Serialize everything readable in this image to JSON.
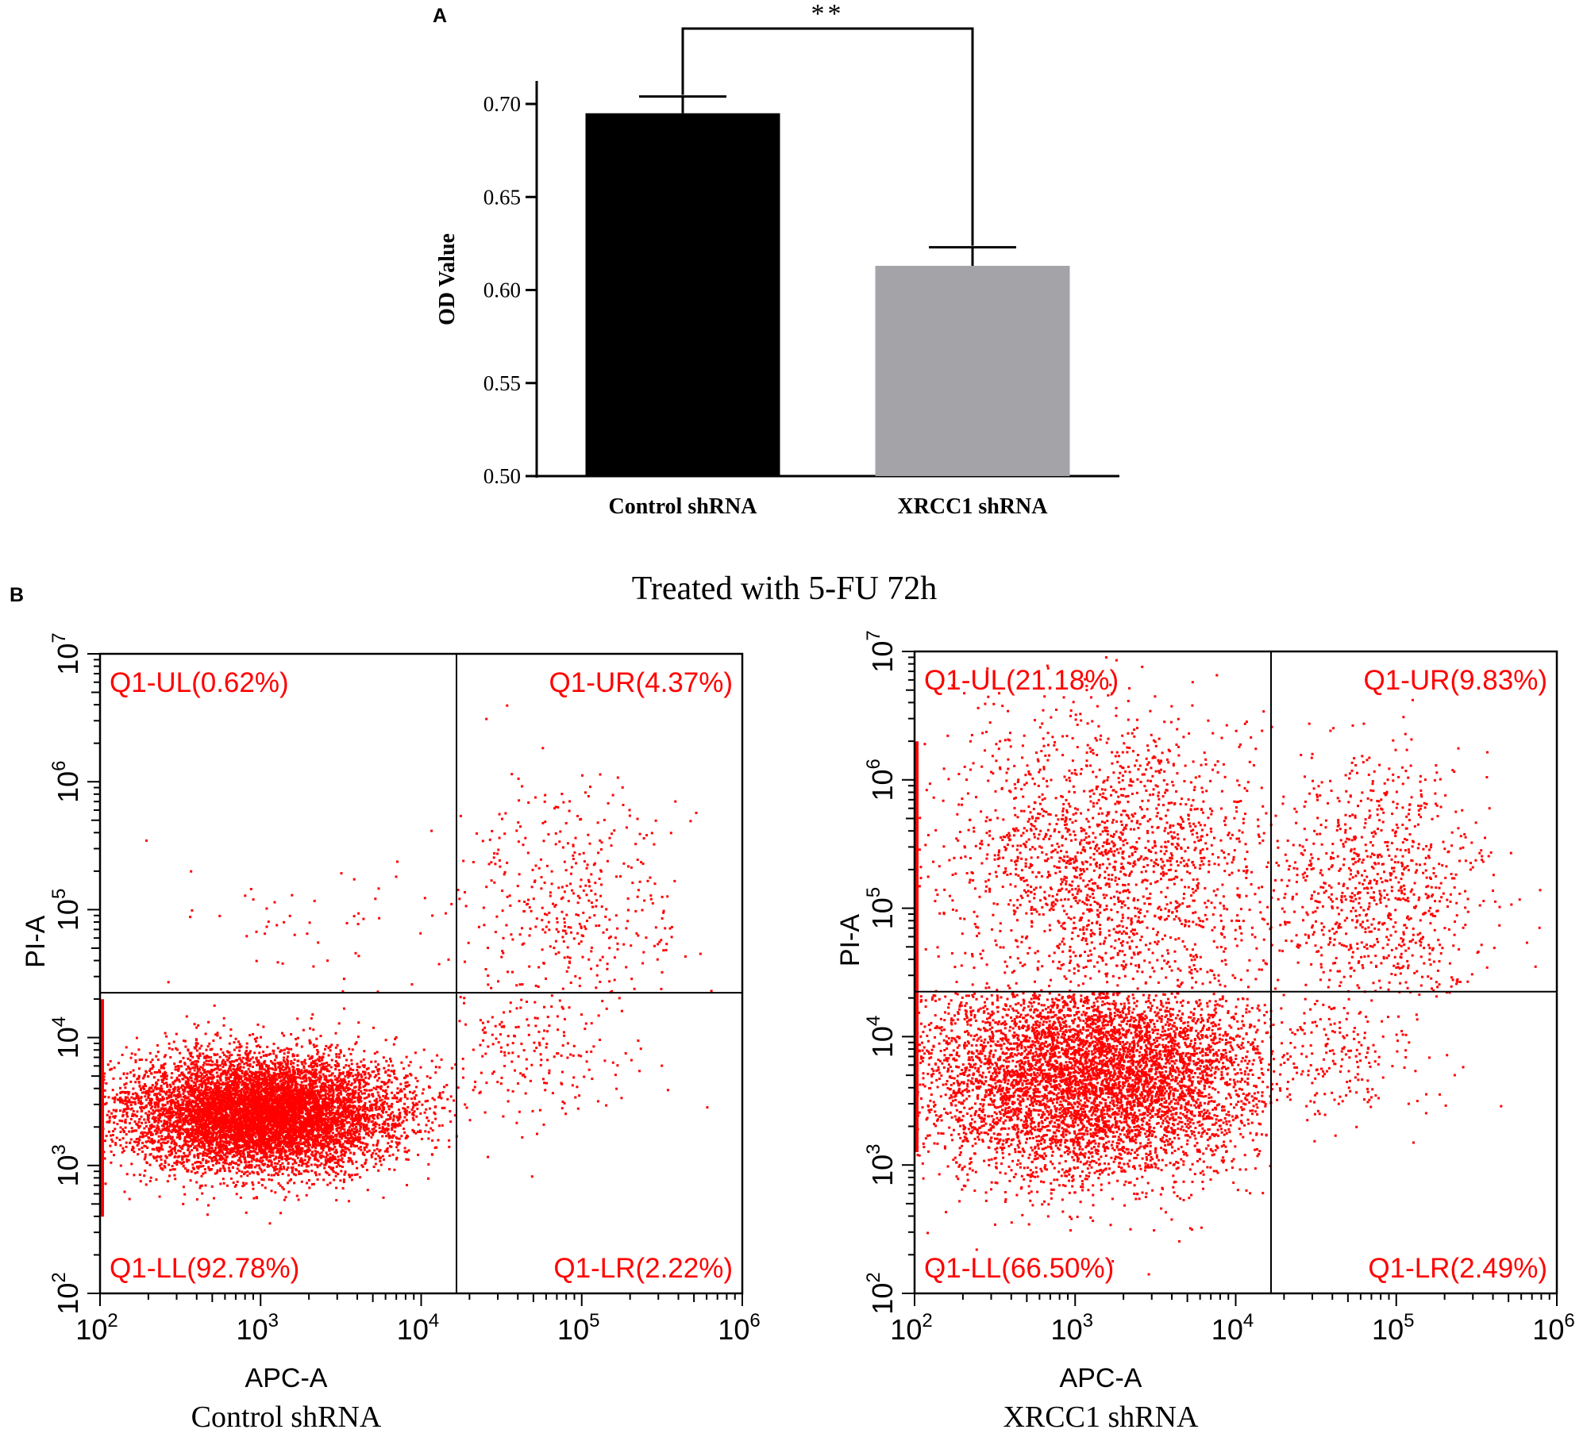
{
  "panel_a": {
    "label": "A",
    "significance": "**"
  },
  "panel_b": {
    "label": "B",
    "treatment_title": "Treated with 5-FU 72h"
  },
  "chart_data": [
    {
      "type": "bar",
      "panel": "A",
      "categories": [
        "Control shRNA",
        "XRCC1 shRNA"
      ],
      "values": [
        0.695,
        0.613
      ],
      "errors": [
        0.009,
        0.01
      ],
      "ylabel": "OD Value",
      "xlabel": "",
      "ylim": [
        0.5,
        0.72
      ],
      "yticks": [
        "0.50",
        "0.55",
        "0.60",
        "0.65",
        "0.70"
      ],
      "ytick_values": [
        0.5,
        0.55,
        0.6,
        0.65,
        0.7
      ],
      "bar_colors": [
        "#000000",
        "#a3a3a8"
      ],
      "significance": "**",
      "grid": false
    },
    {
      "type": "scatter",
      "panel": "B",
      "subtitle": "Control shRNA",
      "xlabel": "APC-A",
      "ylabel": "PI-A",
      "x_scale": "log10",
      "y_scale": "log10",
      "xlim_log": [
        2,
        6
      ],
      "ylim_log": [
        2,
        7
      ],
      "x_ticks": [
        "10",
        "10",
        "10",
        "10",
        "10"
      ],
      "x_tick_exponents": [
        "2",
        "3",
        "4",
        "5",
        "6"
      ],
      "y_ticks": [
        "10",
        "10",
        "10",
        "10",
        "10",
        "10"
      ],
      "y_tick_exponents": [
        "2",
        "3",
        "4",
        "5",
        "6",
        "7"
      ],
      "gate_x_log": 4.22,
      "gate_y_log": 4.35,
      "quadrants": [
        {
          "label": "Q1-UL(0.62%)",
          "position": "upper-left"
        },
        {
          "label": "Q1-UR(4.37%)",
          "position": "upper-right"
        },
        {
          "label": "Q1-LL(92.78%)",
          "position": "lower-left"
        },
        {
          "label": "Q1-LR(2.22%)",
          "position": "lower-right"
        }
      ],
      "quadrant_percent": {
        "UL": 0.62,
        "UR": 4.37,
        "LL": 92.78,
        "LR": 2.22
      },
      "point_color": "#ff0000"
    },
    {
      "type": "scatter",
      "panel": "B",
      "subtitle": "XRCC1 shRNA",
      "xlabel": "APC-A",
      "ylabel": "PI-A",
      "x_scale": "log10",
      "y_scale": "log10",
      "xlim_log": [
        2,
        6
      ],
      "ylim_log": [
        2,
        7
      ],
      "x_ticks": [
        "10",
        "10",
        "10",
        "10",
        "10"
      ],
      "x_tick_exponents": [
        "2",
        "3",
        "4",
        "5",
        "6"
      ],
      "y_ticks": [
        "10",
        "10",
        "10",
        "10",
        "10",
        "10"
      ],
      "y_tick_exponents": [
        "2",
        "3",
        "4",
        "5",
        "6",
        "7"
      ],
      "gate_x_log": 4.22,
      "gate_y_log": 4.35,
      "quadrants": [
        {
          "label": "Q1-UL(21.18%)",
          "position": "upper-left"
        },
        {
          "label": "Q1-UR(9.83%)",
          "position": "upper-right"
        },
        {
          "label": "Q1-LL(66.50%)",
          "position": "lower-left"
        },
        {
          "label": "Q1-LR(2.49%)",
          "position": "lower-right"
        }
      ],
      "quadrant_percent": {
        "UL": 21.18,
        "UR": 9.83,
        "LL": 66.5,
        "LR": 2.49
      },
      "point_color": "#ff0000"
    }
  ]
}
